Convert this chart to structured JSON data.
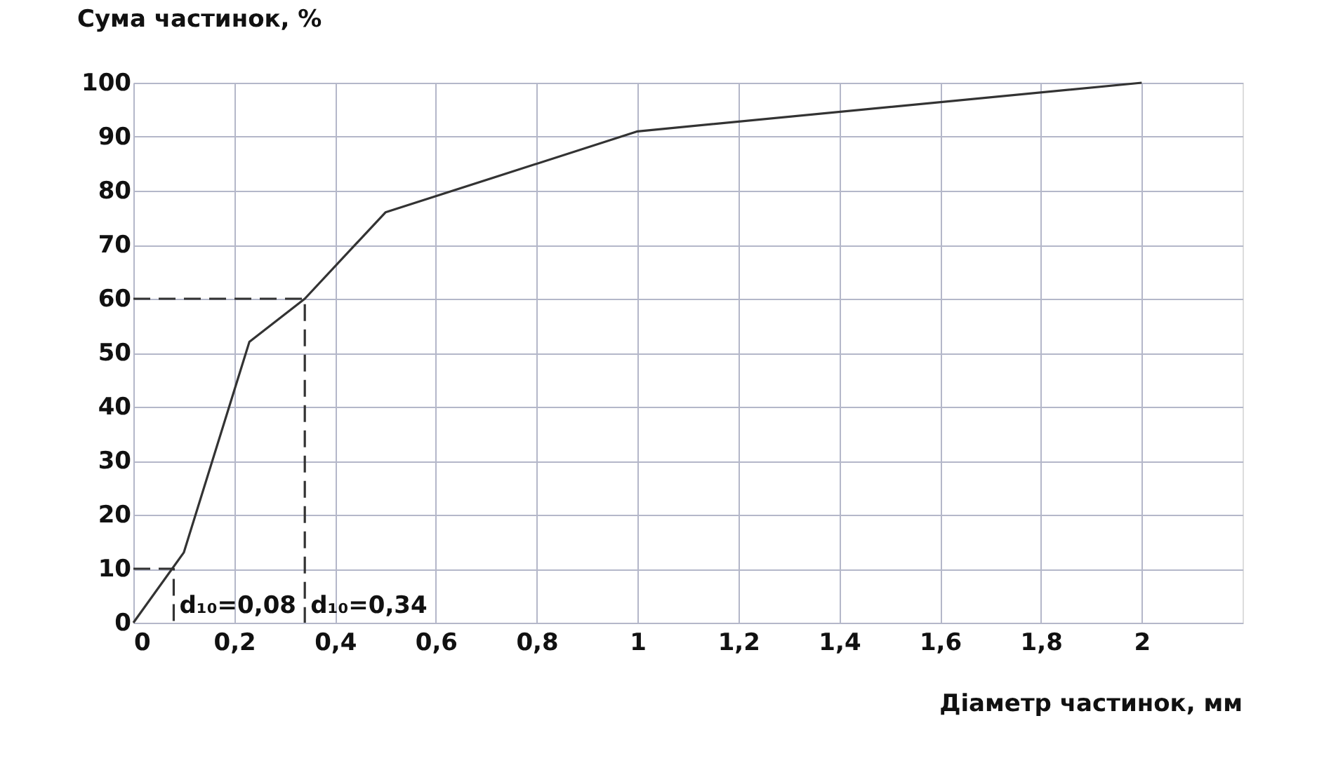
{
  "chart_data": {
    "type": "line",
    "xlabel": "Діаметр частинок, мм",
    "ylabel": "Сума частинок, %",
    "x": [
      0,
      0.1,
      0.23,
      0.34,
      0.5,
      1,
      2
    ],
    "series": [
      {
        "color": "#333333",
        "values": [
          0,
          13,
          52,
          60,
          76,
          91,
          100
        ]
      },
      {
        "color": "#333333",
        "line_style": "dashed",
        "x": [
          0,
          0.08,
          0.08
        ],
        "values": [
          10,
          10,
          0
        ]
      },
      {
        "color": "#333333",
        "line_style": "dashed",
        "x": [
          0,
          0.34,
          0.34
        ],
        "values": [
          60,
          60,
          0
        ]
      }
    ],
    "xlim": [
      0,
      2.2
    ],
    "ylim": [
      0,
      100
    ],
    "xticks": [
      0,
      {
        "value": 0.2,
        "label": "0,2"
      },
      {
        "value": 0.4,
        "label": "0,4"
      },
      {
        "value": 0.6,
        "label": "0,6"
      },
      {
        "value": 0.8,
        "label": "0,8"
      },
      1,
      {
        "value": 1.2,
        "label": "1,2"
      },
      {
        "value": 1.4,
        "label": "1,4"
      },
      {
        "value": 1.6,
        "label": "1,6"
      },
      {
        "value": 1.8,
        "label": "1,8"
      },
      2
    ],
    "yticks": [
      0,
      10,
      20,
      30,
      40,
      50,
      60,
      70,
      80,
      90,
      100
    ],
    "annotations": [
      {
        "text": "d₁₀=0,08",
        "x": 0.08,
        "y": 0
      },
      {
        "text": "d₁₀=0,34",
        "x": 0.34,
        "y": 0
      }
    ],
    "grid": true,
    "marker": "none",
    "line_style": "solid"
  }
}
